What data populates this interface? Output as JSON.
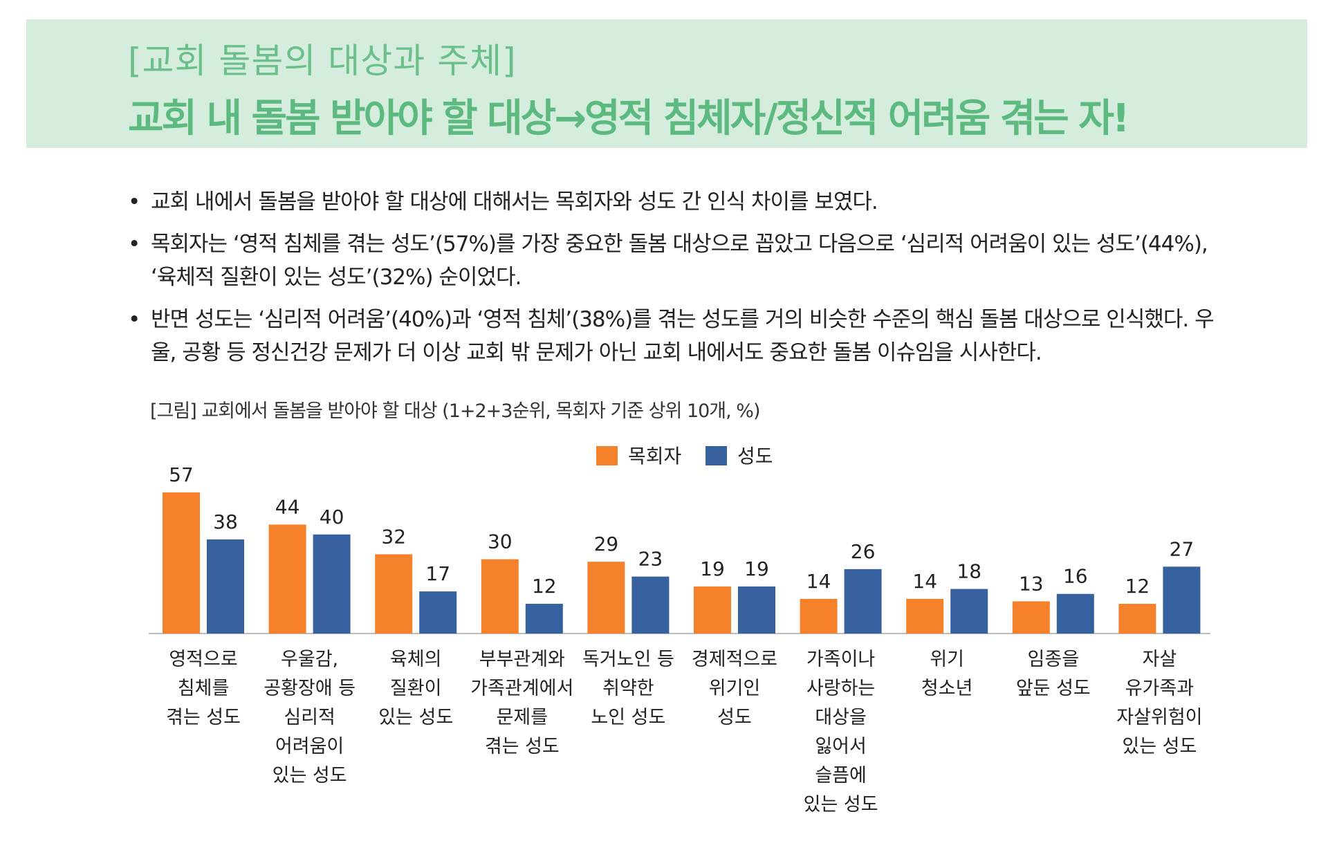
{
  "header": {
    "subtitle": "[교회 돌봄의 대상과 주체]",
    "title": "교회 내 돌봄 받아야 할 대상→영적 침체자/정신적 어려움 겪는 자!"
  },
  "bullets": [
    "교회 내에서 돌봄을 받아야 할 대상에 대해서는 목회자와 성도 간 인식 차이를 보였다.",
    "목회자는 ‘영적 침체를 겪는 성도’(57%)를 가장 중요한 돌봄 대상으로 꼽았고 다음으로 ‘심리적 어려움이 있는 성도’(44%), ‘육체적 질환이 있는 성도’(32%) 순이었다.",
    "반면 성도는 ‘심리적 어려움’(40%)과 ‘영적 침체’(38%)를 겪는 성도를 거의 비슷한 수준의 핵심 돌봄 대상으로 인식했다. 우울, 공황 등 정신건강 문제가 더 이상 교회 밖 문제가 아닌 교회 내에서도 중요한 돌봄 이슈임을 시사한다."
  ],
  "figure_caption": "[그림] 교회에서 돌봄을 받아야 할 대상 (1+2+3순위, 목회자 기준 상위 10개, %)",
  "colors": {
    "pastor": "#f5822a",
    "member": "#36609e",
    "axis": "#bbbbbb",
    "header_bg": "#d5eddc",
    "header_text": "#5cb97f"
  },
  "chart_data": {
    "type": "bar",
    "categories": [
      "영적으로\n침체를\n겪는 성도",
      "우울감,\n공황장애 등\n심리적\n어려움이\n있는 성도",
      "육체의\n질환이\n있는 성도",
      "부부관계와\n가족관계에서\n문제를\n겪는 성도",
      "독거노인 등\n취약한\n노인 성도",
      "경제적으로\n위기인\n성도",
      "가족이나\n사랑하는\n대상을\n잃어서\n슬픔에\n있는 성도",
      "위기\n청소년",
      "임종을\n앞둔 성도",
      "자살\n유가족과\n자살위험이\n있는 성도"
    ],
    "series": [
      {
        "name": "목회자",
        "values": [
          57,
          44,
          32,
          30,
          29,
          19,
          14,
          14,
          13,
          12
        ]
      },
      {
        "name": "성도",
        "values": [
          38,
          40,
          17,
          12,
          23,
          19,
          26,
          18,
          16,
          27
        ]
      }
    ],
    "legend": "top-center",
    "grid": false
  }
}
